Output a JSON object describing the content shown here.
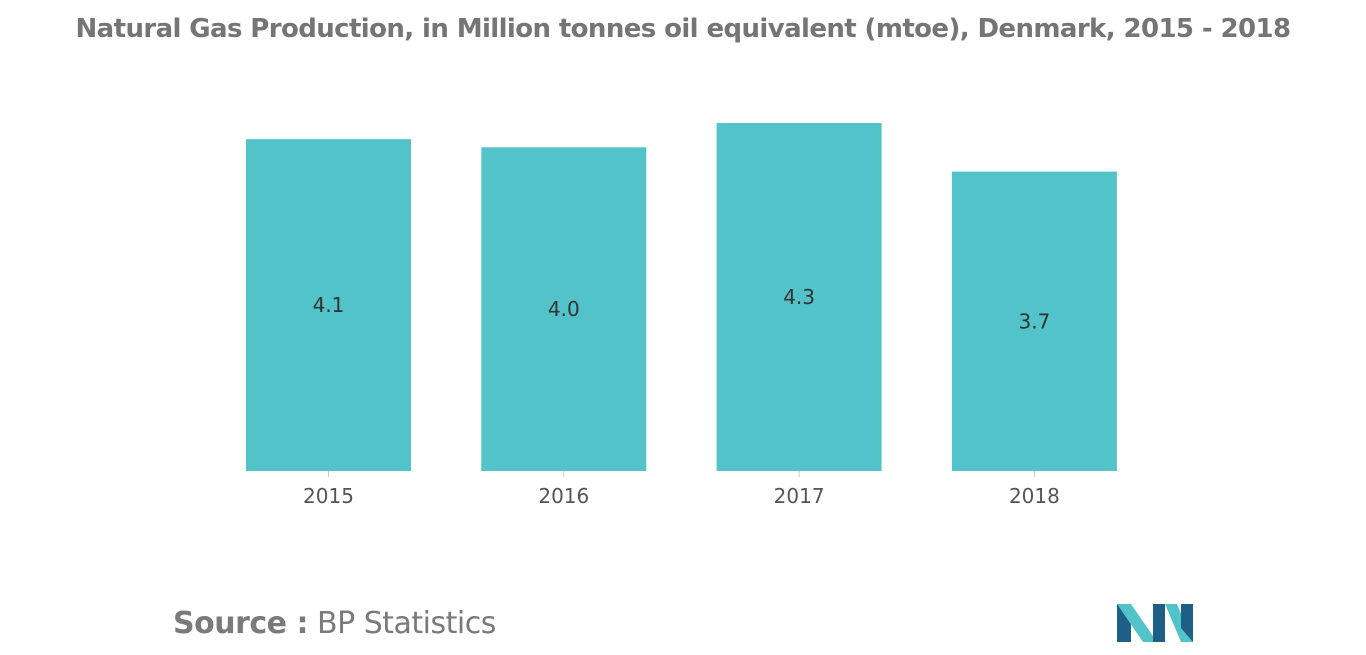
{
  "chart_data": {
    "type": "bar",
    "title": "Natural Gas Production, in Million tonnes oil equivalent (mtoe), Denmark, 2015 - 2018",
    "categories": [
      "2015",
      "2016",
      "2017",
      "2018"
    ],
    "values": [
      4.1,
      4.0,
      4.3,
      3.7
    ],
    "value_labels": [
      "4.1",
      "4.0",
      "4.3",
      "3.7"
    ],
    "xlabel": "",
    "ylabel": "",
    "ylim": [
      0,
      4.3
    ],
    "grid": false,
    "legend": "none",
    "bar_color": "#52c3c9",
    "label_color": "#333333",
    "tick_color": "#555555"
  },
  "source": {
    "label": "Source :",
    "text": "BP Statistics"
  },
  "logo": {
    "icon": "company-logo-icon",
    "colors": [
      "#1e5f87",
      "#52c3c9"
    ]
  }
}
